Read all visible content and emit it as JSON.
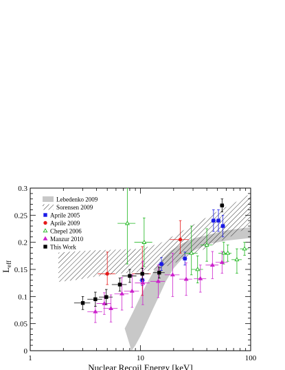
{
  "chart_data": {
    "type": "scatter",
    "title": "",
    "xlabel": "Nuclear Recoil Energy [keV]",
    "ylabel_main": "L",
    "ylabel_sub": "eff",
    "x_scale": "log",
    "xlim": [
      1,
      100
    ],
    "ylim": [
      0,
      0.3
    ],
    "x_ticks": [
      1,
      10,
      100
    ],
    "x_tick_labels": [
      "1",
      "10",
      "100"
    ],
    "y_ticks": [
      0,
      0.05,
      0.1,
      0.15,
      0.2,
      0.25,
      0.3
    ],
    "y_tick_labels": [
      "0",
      "0.05",
      "0.1",
      "0.15",
      "0.2",
      "0.25",
      "0.3"
    ],
    "legend_position": "top-left",
    "bands": [
      {
        "name": "Lebedenko 2009",
        "style": "solid-gray",
        "color": "#c8c8c8",
        "upper": [
          [
            7.2,
            0.041
          ],
          [
            8.5,
            0.07
          ],
          [
            10.0,
            0.1
          ],
          [
            11.5,
            0.125
          ],
          [
            13.5,
            0.15
          ],
          [
            16.0,
            0.17
          ],
          [
            19.0,
            0.185
          ],
          [
            24.0,
            0.198
          ],
          [
            30.0,
            0.207
          ],
          [
            40.0,
            0.213
          ],
          [
            60.0,
            0.222
          ],
          [
            100.0,
            0.228
          ]
        ],
        "lower": [
          [
            100.0,
            0.208
          ],
          [
            60.0,
            0.203
          ],
          [
            40.0,
            0.196
          ],
          [
            30.0,
            0.184
          ],
          [
            24.0,
            0.17
          ],
          [
            20.0,
            0.152
          ],
          [
            17.0,
            0.128
          ],
          [
            15.0,
            0.104
          ],
          [
            13.0,
            0.077
          ],
          [
            11.3,
            0.05
          ],
          [
            10.0,
            0.027
          ],
          [
            9.0,
            0.01
          ],
          [
            8.3,
            0.0
          ]
        ]
      },
      {
        "name": "Sorensen 2009",
        "style": "hatched",
        "color": "#000000",
        "upper": [
          [
            1.8,
            0.181
          ],
          [
            2.5,
            0.183
          ],
          [
            3.5,
            0.185
          ],
          [
            5.0,
            0.186
          ],
          [
            7.0,
            0.187
          ],
          [
            10.0,
            0.188
          ],
          [
            15.0,
            0.198
          ],
          [
            20.0,
            0.212
          ],
          [
            30.0,
            0.232
          ],
          [
            50.0,
            0.257
          ],
          [
            70.0,
            0.272
          ],
          [
            100.0,
            0.29
          ]
        ],
        "lower": [
          [
            100.0,
            0.231
          ],
          [
            70.0,
            0.213
          ],
          [
            50.0,
            0.2
          ],
          [
            35.0,
            0.184
          ],
          [
            25.0,
            0.17
          ],
          [
            18.0,
            0.157
          ],
          [
            14.0,
            0.15
          ],
          [
            10.0,
            0.145
          ],
          [
            7.0,
            0.143
          ],
          [
            5.0,
            0.14
          ],
          [
            3.5,
            0.135
          ],
          [
            2.5,
            0.13
          ],
          [
            1.8,
            0.127
          ]
        ]
      }
    ],
    "series": [
      {
        "name": "Aprile 2005",
        "marker": "square",
        "filled": true,
        "color": "#1a1ae6",
        "points": [
          {
            "x": 10.4,
            "y": 0.13,
            "xerr": [
              0.6,
              0.6
            ],
            "yerr": [
              0.01,
              0.01
            ]
          },
          {
            "x": 15.5,
            "y": 0.16,
            "xerr": [
              1.0,
              1.0
            ],
            "yerr": [
              0.012,
              0.012
            ]
          },
          {
            "x": 25.3,
            "y": 0.17,
            "xerr": [
              1.3,
              1.3
            ],
            "yerr": [
              0.012,
              0.012
            ]
          },
          {
            "x": 46.0,
            "y": 0.24,
            "xerr": [
              2.3,
              2.3
            ],
            "yerr": [
              0.02,
              0.02
            ]
          },
          {
            "x": 51.0,
            "y": 0.24,
            "xerr": [
              2.5,
              2.5
            ],
            "yerr": [
              0.02,
              0.02
            ]
          },
          {
            "x": 56.0,
            "y": 0.23,
            "xerr": [
              2.7,
              2.7
            ],
            "yerr": [
              0.02,
              0.02
            ]
          }
        ]
      },
      {
        "name": "Aprile 2009",
        "marker": "circle",
        "filled": true,
        "color": "#e61a1a",
        "points": [
          {
            "x": 5.0,
            "y": 0.142,
            "xerr": [
              0.9,
              0.9
            ],
            "yerr": [
              0.02,
              0.04
            ]
          },
          {
            "x": 10.4,
            "y": 0.142,
            "xerr": [
              2.0,
              2.0
            ],
            "yerr": [
              0.04,
              0.05
            ]
          },
          {
            "x": 23.0,
            "y": 0.205,
            "xerr": [
              4.5,
              4.5
            ],
            "yerr": [
              0.025,
              0.035
            ]
          }
        ]
      },
      {
        "name": "Chepel 2006",
        "marker": "triangle-up",
        "filled": false,
        "color": "#1ab41a",
        "points": [
          {
            "x": 7.6,
            "y": 0.235,
            "xerr": [
              1.4,
              1.4
            ],
            "yerr": [
              0.075,
              0.065
            ]
          },
          {
            "x": 10.8,
            "y": 0.2,
            "xerr": [
              2.0,
              2.0
            ],
            "yerr": [
              0.045,
              0.045
            ]
          },
          {
            "x": 29.0,
            "y": 0.18,
            "xerr": [
              4.0,
              4.0
            ],
            "yerr": [
              0.04,
              0.05
            ]
          },
          {
            "x": 33.0,
            "y": 0.15,
            "xerr": [
              4.0,
              4.0
            ],
            "yerr": [
              0.025,
              0.025
            ]
          },
          {
            "x": 40.0,
            "y": 0.195,
            "xerr": [
              5.0,
              5.0
            ],
            "yerr": [
              0.03,
              0.03
            ]
          },
          {
            "x": 57.0,
            "y": 0.18,
            "xerr": [
              6.0,
              6.0
            ],
            "yerr": [
              0.02,
              0.02
            ]
          },
          {
            "x": 62.0,
            "y": 0.18,
            "xerr": [
              5.0,
              5.0
            ],
            "yerr": [
              0.015,
              0.015
            ]
          },
          {
            "x": 75.0,
            "y": 0.168,
            "xerr": [
              8.0,
              8.0
            ],
            "yerr": [
              0.025,
              0.02
            ]
          },
          {
            "x": 88.0,
            "y": 0.188,
            "xerr": [
              8.0,
              8.0
            ],
            "yerr": [
              0.012,
              0.012
            ]
          }
        ]
      },
      {
        "name": "Manzur 2010",
        "marker": "triangle-up",
        "filled": true,
        "color": "#cc22cc",
        "points": [
          {
            "x": 3.9,
            "y": 0.072,
            "xerr": [
              0.6,
              0.6
            ],
            "yerr": [
              0.02,
              0.02
            ]
          },
          {
            "x": 4.7,
            "y": 0.087,
            "xerr": [
              0.7,
              0.7
            ],
            "yerr": [
              0.02,
              0.02
            ]
          },
          {
            "x": 5.4,
            "y": 0.078,
            "xerr": [
              0.8,
              0.8
            ],
            "yerr": [
              0.025,
              0.025
            ]
          },
          {
            "x": 6.8,
            "y": 0.105,
            "xerr": [
              1.0,
              1.0
            ],
            "yerr": [
              0.03,
              0.03
            ]
          },
          {
            "x": 8.4,
            "y": 0.11,
            "xerr": [
              1.3,
              1.3
            ],
            "yerr": [
              0.03,
              0.03
            ]
          },
          {
            "x": 10.5,
            "y": 0.125,
            "xerr": [
              1.6,
              1.6
            ],
            "yerr": [
              0.04,
              0.04
            ]
          },
          {
            "x": 14.5,
            "y": 0.128,
            "xerr": [
              2.2,
              2.2
            ],
            "yerr": [
              0.03,
              0.03
            ]
          },
          {
            "x": 19.6,
            "y": 0.14,
            "xerr": [
              3.0,
              3.0
            ],
            "yerr": [
              0.04,
              0.04
            ]
          },
          {
            "x": 26.0,
            "y": 0.132,
            "xerr": [
              3.5,
              3.5
            ],
            "yerr": [
              0.03,
              0.03
            ]
          },
          {
            "x": 35.0,
            "y": 0.133,
            "xerr": [
              4.5,
              4.5
            ],
            "yerr": [
              0.025,
              0.025
            ]
          },
          {
            "x": 45.0,
            "y": 0.158,
            "xerr": [
              6.0,
              6.0
            ],
            "yerr": [
              0.025,
              0.025
            ]
          },
          {
            "x": 55.0,
            "y": 0.163,
            "xerr": [
              7.0,
              7.0
            ],
            "yerr": [
              0.02,
              0.02
            ]
          }
        ]
      },
      {
        "name": "This Work",
        "marker": "square",
        "filled": true,
        "color": "#000000",
        "points": [
          {
            "x": 3.0,
            "y": 0.088,
            "xerr": [
              0.5,
              0.5
            ],
            "yerr": [
              0.012,
              0.012
            ]
          },
          {
            "x": 3.9,
            "y": 0.095,
            "xerr": [
              0.6,
              0.6
            ],
            "yerr": [
              0.013,
              0.013
            ]
          },
          {
            "x": 4.9,
            "y": 0.099,
            "xerr": [
              0.7,
              0.7
            ],
            "yerr": [
              0.014,
              0.014
            ]
          },
          {
            "x": 6.5,
            "y": 0.122,
            "xerr": [
              1.0,
              1.0
            ],
            "yerr": [
              0.012,
              0.012
            ]
          },
          {
            "x": 8.0,
            "y": 0.138,
            "xerr": [
              1.2,
              1.2
            ],
            "yerr": [
              0.012,
              0.012
            ]
          },
          {
            "x": 10.4,
            "y": 0.142,
            "xerr": [
              1.5,
              1.5
            ],
            "yerr": [
              0.01,
              0.01
            ]
          },
          {
            "x": 14.8,
            "y": 0.144,
            "xerr": [
              1.8,
              1.8
            ],
            "yerr": [
              0.01,
              0.01
            ]
          },
          {
            "x": 55.0,
            "y": 0.268,
            "xerr": [
              2.5,
              2.5
            ],
            "yerr": [
              0.012,
              0.012
            ]
          }
        ]
      }
    ],
    "legend": [
      {
        "label": "Lebedenko 2009",
        "kind": "band-solid"
      },
      {
        "label": "Sorensen 2009",
        "kind": "band-hatched"
      },
      {
        "label": "Aprile 2005",
        "kind": "series",
        "series_index": 0
      },
      {
        "label": "Aprile 2009",
        "kind": "series",
        "series_index": 1
      },
      {
        "label": "Chepel 2006",
        "kind": "series",
        "series_index": 2
      },
      {
        "label": "Manzur 2010",
        "kind": "series",
        "series_index": 3
      },
      {
        "label": "This Work",
        "kind": "series",
        "series_index": 4
      }
    ]
  }
}
